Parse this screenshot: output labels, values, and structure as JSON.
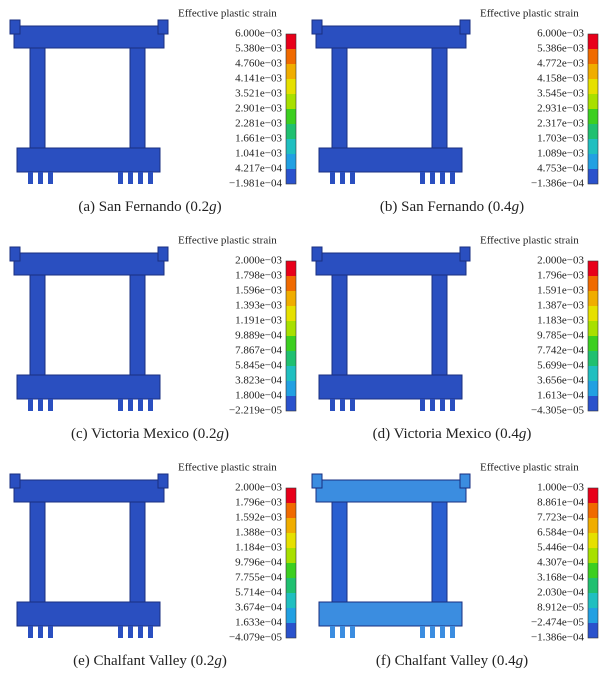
{
  "panels": [
    {
      "legend_title": "Effective plastic strain",
      "legend_labels": [
        "6.000e−03",
        "5.380e−03",
        "4.760e−03",
        "4.141e−03",
        "3.521e−03",
        "2.901e−03",
        "2.281e−03",
        "1.661e−03",
        "1.041e−03",
        "4.217e−04",
        "−1.981e−04"
      ],
      "caption": [
        "(a) San Fernando (0.2",
        "g",
        ")"
      ]
    },
    {
      "legend_title": "Effective plastic strain",
      "legend_labels": [
        "6.000e−03",
        "5.386e−03",
        "4.772e−03",
        "4.158e−03",
        "3.545e−03",
        "2.931e−03",
        "2.317e−03",
        "1.703e−03",
        "1.089e−03",
        "4.753e−04",
        "−1.386e−04"
      ],
      "caption": [
        "(b) San Fernando (0.4",
        "g",
        ")"
      ]
    },
    {
      "legend_title": "Effective plastic strain",
      "legend_labels": [
        "2.000e−03",
        "1.798e−03",
        "1.596e−03",
        "1.393e−03",
        "1.191e−03",
        "9.889e−04",
        "7.867e−04",
        "5.845e−04",
        "3.823e−04",
        "1.800e−04",
        "−2.219e−05"
      ],
      "caption": [
        "(c) Victoria Mexico (0.2",
        "g",
        ")"
      ]
    },
    {
      "legend_title": "Effective plastic strain",
      "legend_labels": [
        "2.000e−03",
        "1.796e−03",
        "1.591e−03",
        "1.387e−03",
        "1.183e−03",
        "9.785e−04",
        "7.742e−04",
        "5.699e−04",
        "3.656e−04",
        "1.613e−04",
        "−4.305e−05"
      ],
      "caption": [
        "(d) Victoria Mexico (0.4",
        "g",
        ")"
      ]
    },
    {
      "legend_title": "Effective plastic strain",
      "legend_labels": [
        "2.000e−03",
        "1.796e−03",
        "1.592e−03",
        "1.388e−03",
        "1.184e−03",
        "9.796e−04",
        "7.755e−04",
        "5.714e−04",
        "3.674e−04",
        "1.633e−04",
        "−4.079e−05"
      ],
      "caption": [
        "(e) Chalfant Valley (0.2",
        "g",
        ")"
      ]
    },
    {
      "legend_title": "Effective plastic strain",
      "legend_labels": [
        "1.000e−03",
        "8.861e−04",
        "7.723e−04",
        "6.584e−04",
        "5.446e−04",
        "4.307e−04",
        "3.168e−04",
        "2.030e−04",
        "8.912e−05",
        "−2.474e−05",
        "−1.386e−04"
      ],
      "caption": [
        "(f) Chalfant Valley (0.4",
        "g",
        ")"
      ]
    }
  ]
}
